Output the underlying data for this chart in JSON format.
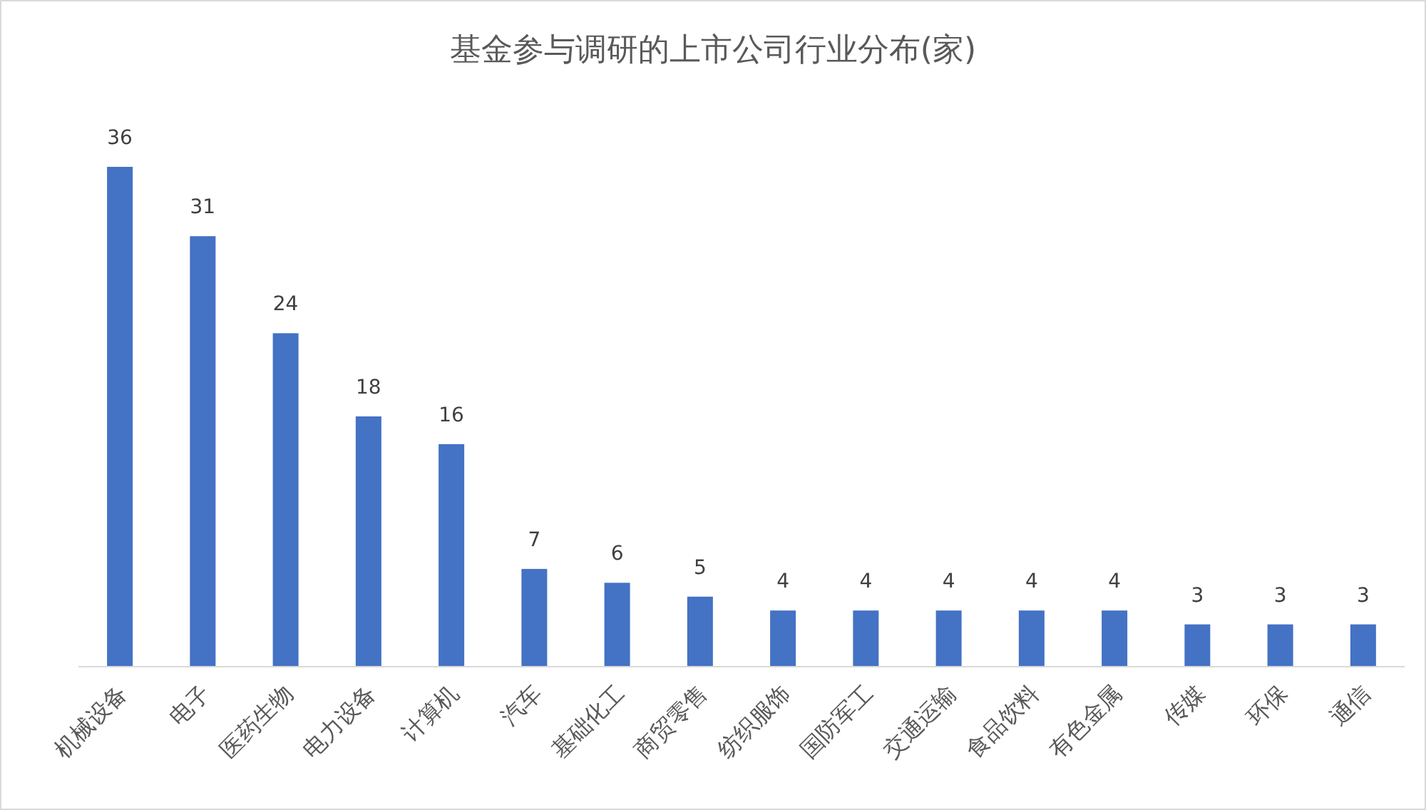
{
  "chart_data": {
    "type": "bar",
    "title": "基金参与调研的上市公司行业分布(家)",
    "categories": [
      "机械设备",
      "电子",
      "医药生物",
      "电力设备",
      "计算机",
      "汽车",
      "基础化工",
      "商贸零售",
      "纺织服饰",
      "国防军工",
      "交通运输",
      "食品饮料",
      "有色金属",
      "传媒",
      "环保",
      "通信"
    ],
    "values": [
      36,
      31,
      24,
      18,
      16,
      7,
      6,
      5,
      4,
      4,
      4,
      4,
      4,
      3,
      3,
      3
    ],
    "color": "#4472c4",
    "data_labels": true
  }
}
